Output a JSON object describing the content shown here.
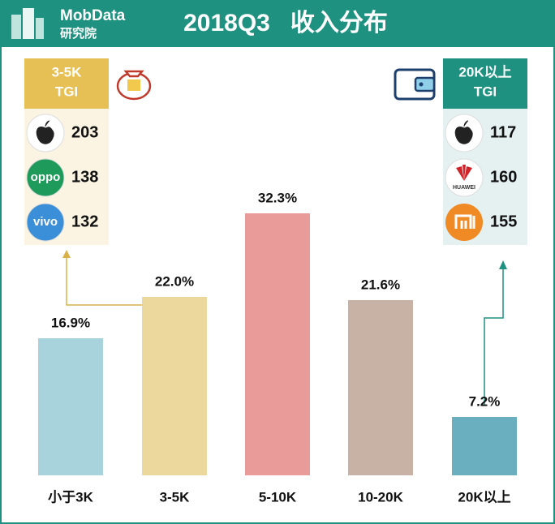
{
  "header": {
    "logo_name": "MobData",
    "logo_sub": "研究院",
    "title": "2018Q3   收入分布"
  },
  "chart_data": {
    "type": "bar",
    "categories": [
      "小于3K",
      "3-5K",
      "5-10K",
      "10-20K",
      "20K以上"
    ],
    "values": [
      16.9,
      22.0,
      32.3,
      21.6,
      7.2
    ],
    "value_labels": [
      "16.9%",
      "22.0%",
      "32.3%",
      "21.6%",
      "7.2%"
    ],
    "colors": [
      "#a9d3dc",
      "#ecd79c",
      "#e99b9a",
      "#c8b2a5",
      "#6aafbf"
    ]
  },
  "panels": [
    {
      "title": [
        "3-5K",
        "TGI"
      ],
      "items": [
        {
          "value": 203
        },
        {
          "logo": "oppo",
          "value": 138
        },
        {
          "logo": "vivo",
          "value": 132
        }
      ]
    },
    {
      "title": [
        "20K以上",
        "TGI"
      ],
      "items": [
        {
          "value": 117
        },
        {
          "logo": "HUAWEI",
          "value": 160
        },
        {
          "value": 155
        }
      ]
    }
  ]
}
